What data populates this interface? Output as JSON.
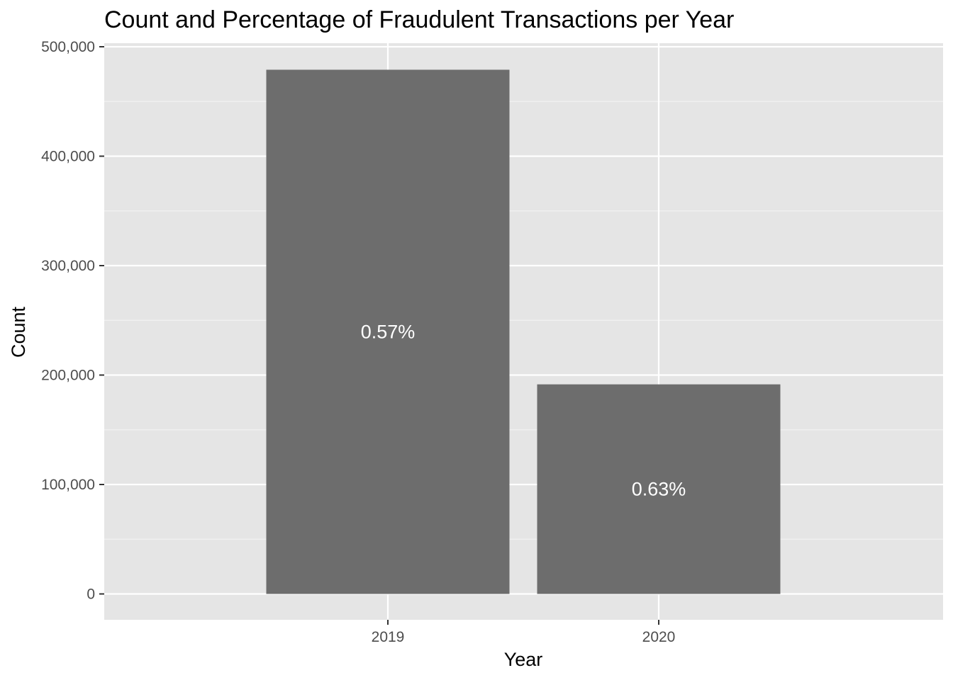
{
  "chart_data": {
    "type": "bar",
    "title": "Count and Percentage of Fraudulent Transactions per Year",
    "xlabel": "Year",
    "ylabel": "Count",
    "categories": [
      "2019",
      "2020"
    ],
    "values": [
      479000,
      191500
    ],
    "data_labels": [
      "0.57%",
      "0.63%"
    ],
    "ylim": [
      0,
      500000
    ],
    "yticks": [
      0,
      100000,
      200000,
      300000,
      400000,
      500000
    ],
    "ytick_labels": [
      "0",
      "100,000",
      "200,000",
      "300,000",
      "400,000",
      "500,000"
    ],
    "grid": true,
    "legend": "none"
  },
  "colors": {
    "panel_background": "#e5e5e5",
    "grid_major": "#ffffff",
    "grid_minor": "#f2f2f2",
    "bar_fill": "#6d6d6d",
    "bar_label": "#ffffff",
    "tick_text": "#4d4d4d",
    "tick_mark": "#333333"
  }
}
